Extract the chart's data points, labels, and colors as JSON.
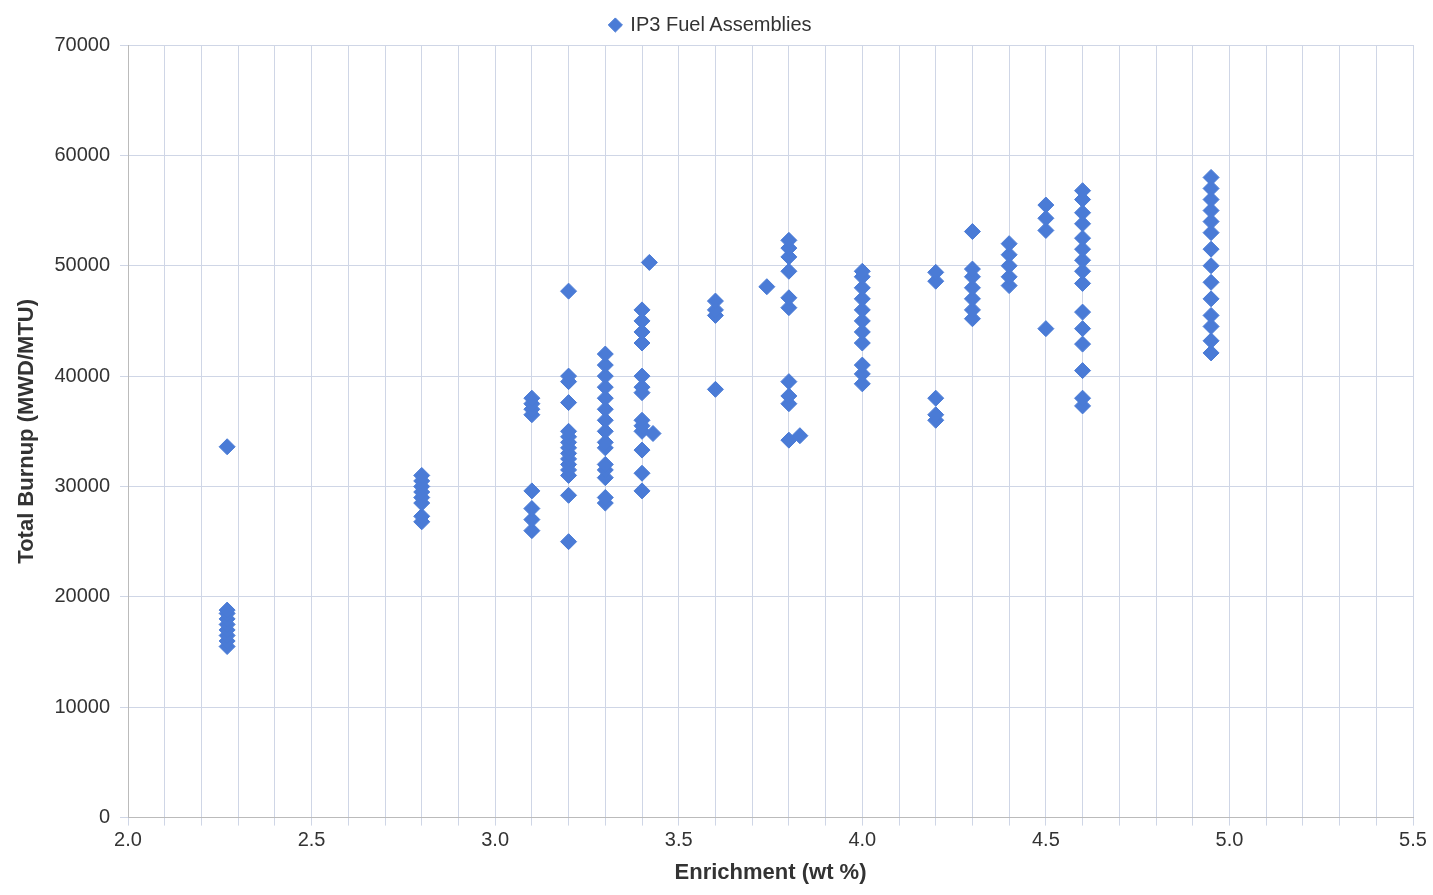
{
  "chart_data": {
    "type": "scatter",
    "xlabel": "Enrichment (wt %)",
    "ylabel": "Total Burnup (MWD/MTU)",
    "xlim": [
      2.0,
      5.5
    ],
    "xticks": [
      {
        "value": 2.0,
        "label": "2.0"
      },
      {
        "value": 2.1,
        "label": null
      },
      {
        "value": 2.2,
        "label": null
      },
      {
        "value": 2.3,
        "label": null
      },
      {
        "value": 2.4,
        "label": null
      },
      {
        "value": 2.5,
        "label": "2.5"
      },
      {
        "value": 2.6,
        "label": null
      },
      {
        "value": 2.7,
        "label": null
      },
      {
        "value": 2.8,
        "label": null
      },
      {
        "value": 2.9,
        "label": null
      },
      {
        "value": 3.0,
        "label": "3.0"
      },
      {
        "value": 3.1,
        "label": null
      },
      {
        "value": 3.2,
        "label": null
      },
      {
        "value": 3.3,
        "label": null
      },
      {
        "value": 3.4,
        "label": null
      },
      {
        "value": 3.5,
        "label": "3.5"
      },
      {
        "value": 3.6,
        "label": null
      },
      {
        "value": 3.7,
        "label": null
      },
      {
        "value": 3.8,
        "label": null
      },
      {
        "value": 3.9,
        "label": null
      },
      {
        "value": 4.0,
        "label": "4.0"
      },
      {
        "value": 4.1,
        "label": null
      },
      {
        "value": 4.2,
        "label": null
      },
      {
        "value": 4.3,
        "label": null
      },
      {
        "value": 4.4,
        "label": null
      },
      {
        "value": 4.5,
        "label": "4.5"
      },
      {
        "value": 4.6,
        "label": null
      },
      {
        "value": 4.7,
        "label": null
      },
      {
        "value": 4.8,
        "label": null
      },
      {
        "value": 4.9,
        "label": null
      },
      {
        "value": 5.0,
        "label": "5.0"
      },
      {
        "value": 5.1,
        "label": null
      },
      {
        "value": 5.2,
        "label": null
      },
      {
        "value": 5.3,
        "label": null
      },
      {
        "value": 5.4,
        "label": null
      },
      {
        "value": 5.5,
        "label": "5.5"
      }
    ],
    "ylim": [
      0,
      70000
    ],
    "yticks": [
      0,
      10000,
      20000,
      30000,
      40000,
      50000,
      60000,
      70000
    ],
    "grid": true,
    "legend": "top",
    "marker": "diamond",
    "series": [
      {
        "name": "IP3 Fuel Assemblies",
        "color": "#4a7bd6",
        "x": [
          2.27,
          2.27,
          2.27,
          2.27,
          2.27,
          2.27,
          2.27,
          2.27,
          2.27,
          2.8,
          2.8,
          2.8,
          2.8,
          2.8,
          2.8,
          2.8,
          2.8,
          3.1,
          3.1,
          3.1,
          3.1,
          3.1,
          3.1,
          3.1,
          3.1,
          3.2,
          3.2,
          3.2,
          3.2,
          3.2,
          3.2,
          3.2,
          3.2,
          3.2,
          3.2,
          3.2,
          3.2,
          3.2,
          3.2,
          3.2,
          3.3,
          3.3,
          3.3,
          3.3,
          3.3,
          3.3,
          3.3,
          3.3,
          3.3,
          3.3,
          3.3,
          3.3,
          3.3,
          3.3,
          3.3,
          3.4,
          3.4,
          3.4,
          3.4,
          3.4,
          3.4,
          3.4,
          3.4,
          3.4,
          3.4,
          3.4,
          3.4,
          3.4,
          3.42,
          3.43,
          3.6,
          3.6,
          3.6,
          3.6,
          3.74,
          3.8,
          3.83,
          3.8,
          3.8,
          3.8,
          3.8,
          3.8,
          3.8,
          3.8,
          3.8,
          3.8,
          4.0,
          4.0,
          4.0,
          4.0,
          4.0,
          4.0,
          4.0,
          4.0,
          4.0,
          4.0,
          4.0,
          4.2,
          4.2,
          4.2,
          4.2,
          4.2,
          4.3,
          4.3,
          4.3,
          4.3,
          4.3,
          4.3,
          4.3,
          4.4,
          4.4,
          4.4,
          4.4,
          4.4,
          4.5,
          4.5,
          4.5,
          4.5,
          4.6,
          4.6,
          4.6,
          4.6,
          4.6,
          4.6,
          4.6,
          4.6,
          4.6,
          4.6,
          4.6,
          4.6,
          4.6,
          4.6,
          4.6,
          4.95,
          4.95,
          4.95,
          4.95,
          4.95,
          4.95,
          4.95,
          4.95,
          4.95,
          4.95,
          4.95,
          4.95,
          4.95,
          4.95
        ],
        "values": [
          33600,
          15500,
          16000,
          16500,
          17000,
          17500,
          18000,
          18500,
          18800,
          26800,
          27300,
          28500,
          29000,
          29500,
          30000,
          30500,
          31000,
          26000,
          27000,
          28000,
          29600,
          36500,
          37000,
          37500,
          38000,
          25000,
          29200,
          31000,
          31500,
          32000,
          32500,
          33000,
          33500,
          34000,
          34500,
          35000,
          37600,
          39500,
          40000,
          47700,
          28500,
          29000,
          30800,
          31500,
          32000,
          33500,
          34000,
          35000,
          36000,
          37000,
          38000,
          39000,
          40000,
          41000,
          42000,
          29600,
          31200,
          33300,
          35000,
          35500,
          36000,
          38500,
          39000,
          40000,
          43000,
          44000,
          45000,
          46000,
          50300,
          34800,
          38800,
          45500,
          46000,
          46800,
          48100,
          34200,
          34600,
          37500,
          38200,
          39500,
          46200,
          47100,
          49500,
          50800,
          51600,
          52300,
          39300,
          40200,
          41000,
          43000,
          44000,
          45000,
          46000,
          47000,
          48000,
          49000,
          49500,
          36000,
          36500,
          38000,
          48600,
          49400,
          45200,
          46000,
          47000,
          48000,
          49000,
          49700,
          53100,
          48200,
          49000,
          50000,
          51000,
          52000,
          44300,
          53200,
          54300,
          55500,
          37300,
          38000,
          40500,
          42900,
          44300,
          45800,
          48400,
          49500,
          50500,
          51500,
          52500,
          53800,
          54800,
          56000,
          56800,
          42100,
          43200,
          44500,
          45500,
          47000,
          48500,
          50000,
          51500,
          53000,
          54000,
          55000,
          56000,
          57000,
          58000
        ]
      }
    ]
  }
}
